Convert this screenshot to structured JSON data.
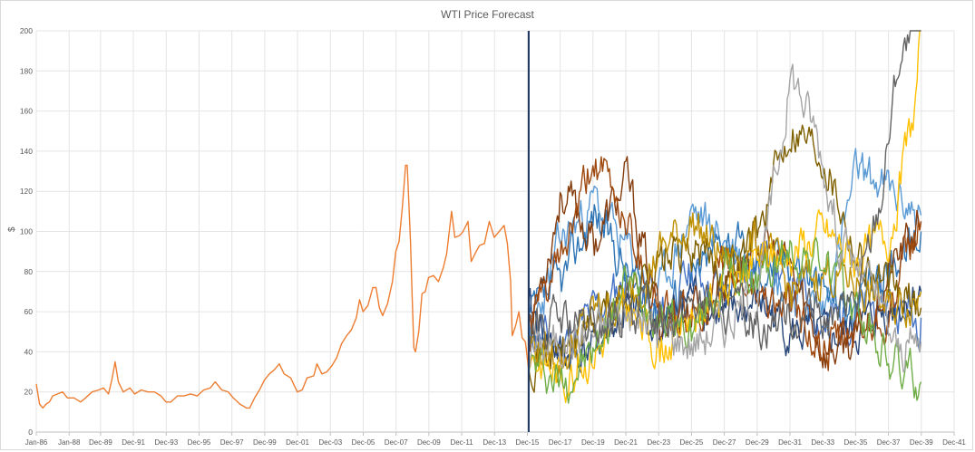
{
  "chart_data": {
    "type": "line",
    "title": "WTI Price Forecast",
    "xlabel": "",
    "ylabel": "$",
    "ylim": [
      0,
      200
    ],
    "y_ticks": [
      0,
      20,
      40,
      60,
      80,
      100,
      120,
      140,
      160,
      180,
      200
    ],
    "x_range_years": [
      1986.0,
      2041.917
    ],
    "x_tick_labels": [
      "Jan-86",
      "Jan-88",
      "Dec-89",
      "Dec-91",
      "Dec-93",
      "Dec-95",
      "Dec-97",
      "Dec-99",
      "Dec-01",
      "Dec-03",
      "Dec-05",
      "Dec-07",
      "Dec-09",
      "Dec-11",
      "Dec-13",
      "Dec-15",
      "Dec-17",
      "Dec-19",
      "Dec-21",
      "Dec-23",
      "Dec-25",
      "Dec-27",
      "Dec-29",
      "Dec-31",
      "Dec-33",
      "Dec-35",
      "Dec-37",
      "Dec-39",
      "Dec-41"
    ],
    "x_tick_years": [
      1986.0,
      1988.0,
      1989.917,
      1991.917,
      1993.917,
      1995.917,
      1997.917,
      1999.917,
      2001.917,
      2003.917,
      2005.917,
      2007.917,
      2009.917,
      2011.917,
      2013.917,
      2015.917,
      2017.917,
      2019.917,
      2021.917,
      2023.917,
      2025.917,
      2027.917,
      2029.917,
      2031.917,
      2033.917,
      2035.917,
      2037.917,
      2039.917,
      2041.917
    ],
    "forecast_start_year": 2016.0,
    "grid": "horizontal and vertical",
    "legend": "none",
    "history": {
      "color": "#ed7d31",
      "points": [
        [
          1986.0,
          24
        ],
        [
          1986.2,
          14
        ],
        [
          1986.4,
          12
        ],
        [
          1986.6,
          14
        ],
        [
          1986.8,
          15
        ],
        [
          1987.0,
          18
        ],
        [
          1987.3,
          19
        ],
        [
          1987.6,
          20
        ],
        [
          1987.9,
          17
        ],
        [
          1988.3,
          17
        ],
        [
          1988.7,
          15
        ],
        [
          1989.0,
          17
        ],
        [
          1989.4,
          20
        ],
        [
          1989.8,
          21
        ],
        [
          1990.1,
          22
        ],
        [
          1990.4,
          19
        ],
        [
          1990.6,
          26
        ],
        [
          1990.8,
          35
        ],
        [
          1991.0,
          25
        ],
        [
          1991.3,
          20
        ],
        [
          1991.7,
          22
        ],
        [
          1992.0,
          19
        ],
        [
          1992.4,
          21
        ],
        [
          1992.8,
          20
        ],
        [
          1993.2,
          20
        ],
        [
          1993.6,
          18
        ],
        [
          1993.9,
          15
        ],
        [
          1994.2,
          15
        ],
        [
          1994.6,
          18
        ],
        [
          1995.0,
          18
        ],
        [
          1995.4,
          19
        ],
        [
          1995.8,
          18
        ],
        [
          1996.2,
          21
        ],
        [
          1996.6,
          22
        ],
        [
          1996.9,
          25
        ],
        [
          1997.3,
          21
        ],
        [
          1997.7,
          20
        ],
        [
          1998.0,
          17
        ],
        [
          1998.4,
          14
        ],
        [
          1998.8,
          12
        ],
        [
          1999.0,
          12
        ],
        [
          1999.3,
          17
        ],
        [
          1999.6,
          21
        ],
        [
          1999.9,
          26
        ],
        [
          2000.2,
          29
        ],
        [
          2000.5,
          31
        ],
        [
          2000.8,
          34
        ],
        [
          2001.1,
          29
        ],
        [
          2001.5,
          27
        ],
        [
          2001.9,
          20
        ],
        [
          2002.2,
          21
        ],
        [
          2002.5,
          27
        ],
        [
          2002.9,
          28
        ],
        [
          2003.1,
          34
        ],
        [
          2003.4,
          29
        ],
        [
          2003.7,
          30
        ],
        [
          2004.0,
          33
        ],
        [
          2004.3,
          37
        ],
        [
          2004.6,
          44
        ],
        [
          2004.9,
          48
        ],
        [
          2005.2,
          51
        ],
        [
          2005.5,
          57
        ],
        [
          2005.7,
          66
        ],
        [
          2005.9,
          60
        ],
        [
          2006.2,
          63
        ],
        [
          2006.5,
          72
        ],
        [
          2006.7,
          72
        ],
        [
          2006.9,
          62
        ],
        [
          2007.1,
          58
        ],
        [
          2007.4,
          64
        ],
        [
          2007.7,
          75
        ],
        [
          2007.9,
          90
        ],
        [
          2008.1,
          95
        ],
        [
          2008.3,
          112
        ],
        [
          2008.5,
          133
        ],
        [
          2008.6,
          133
        ],
        [
          2008.8,
          95
        ],
        [
          2008.9,
          68
        ],
        [
          2009.0,
          42
        ],
        [
          2009.1,
          40
        ],
        [
          2009.3,
          50
        ],
        [
          2009.5,
          69
        ],
        [
          2009.7,
          70
        ],
        [
          2009.9,
          77
        ],
        [
          2010.2,
          78
        ],
        [
          2010.5,
          75
        ],
        [
          2010.8,
          82
        ],
        [
          2011.0,
          89
        ],
        [
          2011.3,
          110
        ],
        [
          2011.5,
          97
        ],
        [
          2011.8,
          98
        ],
        [
          2012.0,
          100
        ],
        [
          2012.3,
          105
        ],
        [
          2012.5,
          85
        ],
        [
          2012.8,
          90
        ],
        [
          2013.0,
          93
        ],
        [
          2013.3,
          94
        ],
        [
          2013.6,
          105
        ],
        [
          2013.9,
          97
        ],
        [
          2014.2,
          100
        ],
        [
          2014.5,
          103
        ],
        [
          2014.7,
          94
        ],
        [
          2014.9,
          75
        ],
        [
          2015.0,
          48
        ],
        [
          2015.2,
          53
        ],
        [
          2015.4,
          60
        ],
        [
          2015.6,
          47
        ],
        [
          2015.8,
          45
        ],
        [
          2016.0,
          31
        ]
      ]
    },
    "series": [
      {
        "color": "#4472c4",
        "seed": 11,
        "end": 57,
        "anchors": [
          [
            2016,
            50
          ],
          [
            2018,
            42
          ],
          [
            2020,
            60
          ],
          [
            2022,
            75
          ],
          [
            2024,
            55
          ],
          [
            2026,
            80
          ],
          [
            2028,
            70
          ],
          [
            2030,
            90
          ],
          [
            2032,
            75
          ],
          [
            2034,
            55
          ],
          [
            2036,
            60
          ],
          [
            2038,
            65
          ],
          [
            2039.9,
            57
          ]
        ]
      },
      {
        "color": "#5b9bd5",
        "seed": 23,
        "end": 108,
        "anchors": [
          [
            2016,
            45
          ],
          [
            2018,
            95
          ],
          [
            2020,
            115
          ],
          [
            2022,
            90
          ],
          [
            2024,
            70
          ],
          [
            2026,
            110
          ],
          [
            2028,
            95
          ],
          [
            2030,
            80
          ],
          [
            2032,
            70
          ],
          [
            2034,
            60
          ],
          [
            2036,
            130
          ],
          [
            2038,
            120
          ],
          [
            2039.9,
            108
          ]
        ]
      },
      {
        "color": "#2e75b6",
        "seed": 37,
        "end": 100,
        "anchors": [
          [
            2016,
            55
          ],
          [
            2018,
            75
          ],
          [
            2020,
            110
          ],
          [
            2022,
            80
          ],
          [
            2024,
            60
          ],
          [
            2026,
            75
          ],
          [
            2028,
            100
          ],
          [
            2030,
            80
          ],
          [
            2032,
            90
          ],
          [
            2034,
            70
          ],
          [
            2036,
            60
          ],
          [
            2038,
            85
          ],
          [
            2039.9,
            100
          ]
        ]
      },
      {
        "color": "#264478",
        "seed": 41,
        "end": 70,
        "anchors": [
          [
            2016,
            60
          ],
          [
            2018,
            38
          ],
          [
            2020,
            42
          ],
          [
            2022,
            60
          ],
          [
            2024,
            50
          ],
          [
            2026,
            70
          ],
          [
            2028,
            55
          ],
          [
            2030,
            65
          ],
          [
            2032,
            50
          ],
          [
            2034,
            45
          ],
          [
            2036,
            50
          ],
          [
            2038,
            62
          ],
          [
            2039.9,
            70
          ]
        ]
      },
      {
        "color": "#843c0c",
        "seed": 53,
        "end": 105,
        "anchors": [
          [
            2016,
            48
          ],
          [
            2018,
            120
          ],
          [
            2020,
            95
          ],
          [
            2022,
            125
          ],
          [
            2024,
            55
          ],
          [
            2026,
            60
          ],
          [
            2028,
            75
          ],
          [
            2030,
            95
          ],
          [
            2032,
            80
          ],
          [
            2034,
            40
          ],
          [
            2036,
            45
          ],
          [
            2038,
            80
          ],
          [
            2039.9,
            105
          ]
        ]
      },
      {
        "color": "#9e480e",
        "seed": 61,
        "end": 105,
        "anchors": [
          [
            2016,
            52
          ],
          [
            2018,
            85
          ],
          [
            2020,
            135
          ],
          [
            2022,
            105
          ],
          [
            2024,
            60
          ],
          [
            2026,
            55
          ],
          [
            2028,
            80
          ],
          [
            2030,
            70
          ],
          [
            2032,
            60
          ],
          [
            2034,
            40
          ],
          [
            2036,
            50
          ],
          [
            2038,
            60
          ],
          [
            2039.9,
            105
          ]
        ]
      },
      {
        "color": "#7f6000",
        "seed": 71,
        "end": 62,
        "anchors": [
          [
            2016,
            40
          ],
          [
            2018,
            40
          ],
          [
            2020,
            55
          ],
          [
            2022,
            70
          ],
          [
            2024,
            85
          ],
          [
            2026,
            90
          ],
          [
            2028,
            80
          ],
          [
            2030,
            100
          ],
          [
            2032,
            155
          ],
          [
            2034,
            140
          ],
          [
            2036,
            90
          ],
          [
            2038,
            70
          ],
          [
            2039.9,
            62
          ]
        ]
      },
      {
        "color": "#bf9000",
        "seed": 79,
        "end": 70,
        "anchors": [
          [
            2016,
            45
          ],
          [
            2018,
            35
          ],
          [
            2020,
            60
          ],
          [
            2022,
            65
          ],
          [
            2024,
            90
          ],
          [
            2026,
            105
          ],
          [
            2028,
            85
          ],
          [
            2030,
            95
          ],
          [
            2032,
            70
          ],
          [
            2034,
            80
          ],
          [
            2036,
            75
          ],
          [
            2038,
            60
          ],
          [
            2039.9,
            70
          ]
        ]
      },
      {
        "color": "#ffc000",
        "seed": 83,
        "end": 200,
        "anchors": [
          [
            2016,
            40
          ],
          [
            2018,
            28
          ],
          [
            2020,
            40
          ],
          [
            2022,
            60
          ],
          [
            2024,
            42
          ],
          [
            2026,
            60
          ],
          [
            2028,
            70
          ],
          [
            2030,
            85
          ],
          [
            2032,
            90
          ],
          [
            2034,
            100
          ],
          [
            2036,
            85
          ],
          [
            2038,
            100
          ],
          [
            2039.5,
            160
          ],
          [
            2039.9,
            200
          ]
        ]
      },
      {
        "color": "#70ad47",
        "seed": 97,
        "end": 25,
        "anchors": [
          [
            2016,
            35
          ],
          [
            2018,
            25
          ],
          [
            2020,
            40
          ],
          [
            2022,
            75
          ],
          [
            2024,
            60
          ],
          [
            2026,
            50
          ],
          [
            2028,
            80
          ],
          [
            2030,
            75
          ],
          [
            2032,
            90
          ],
          [
            2034,
            85
          ],
          [
            2036,
            60
          ],
          [
            2038,
            35
          ],
          [
            2039.9,
            25
          ]
        ]
      },
      {
        "color": "#a5a5a5",
        "seed": 101,
        "end": 45,
        "anchors": [
          [
            2016,
            42
          ],
          [
            2018,
            45
          ],
          [
            2020,
            50
          ],
          [
            2022,
            60
          ],
          [
            2024,
            50
          ],
          [
            2026,
            45
          ],
          [
            2028,
            55
          ],
          [
            2030,
            70
          ],
          [
            2032,
            180
          ],
          [
            2033.5,
            150
          ],
          [
            2035,
            95
          ],
          [
            2037,
            70
          ],
          [
            2038.5,
            40
          ],
          [
            2039.9,
            45
          ]
        ]
      },
      {
        "color": "#636363",
        "seed": 107,
        "end": 200,
        "anchors": [
          [
            2016,
            50
          ],
          [
            2018,
            55
          ],
          [
            2020,
            48
          ],
          [
            2022,
            62
          ],
          [
            2024,
            58
          ],
          [
            2026,
            65
          ],
          [
            2028,
            60
          ],
          [
            2030,
            55
          ],
          [
            2032,
            60
          ],
          [
            2034,
            55
          ],
          [
            2036,
            65
          ],
          [
            2037.5,
            120
          ],
          [
            2038.5,
            185
          ],
          [
            2039.9,
            200
          ]
        ]
      }
    ]
  }
}
